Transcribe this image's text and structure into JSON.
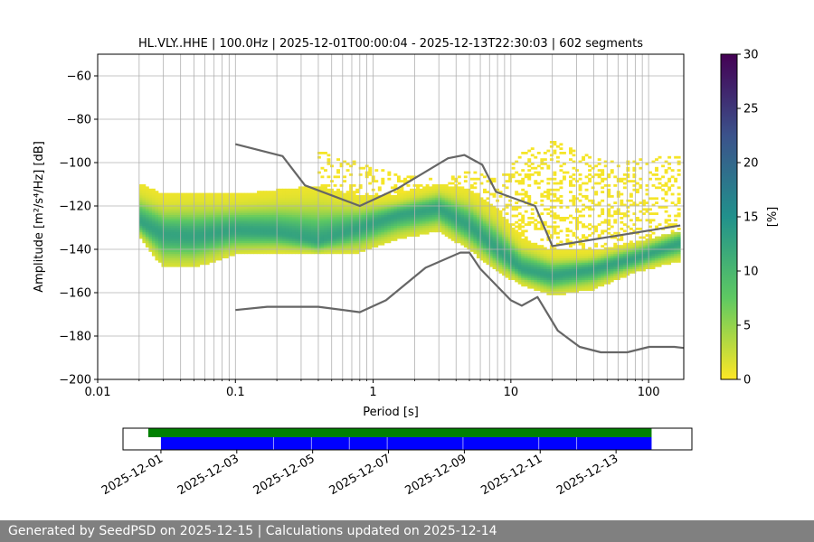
{
  "chart_data": [
    {
      "type": "heatmap",
      "title": "HL.VLY..HHE | 100.0Hz | 2025-12-01T00:00:04 - 2025-12-13T22:30:03 | 602 segments",
      "xlabel": "Period [s]",
      "ylabel": "Amplitude [m²/s⁴/Hz] [dB]",
      "x_scale": "log",
      "xlim": [
        0.01,
        180
      ],
      "ylim": [
        -200,
        -50
      ],
      "x_ticks": [
        0.01,
        0.1,
        1,
        10,
        100
      ],
      "x_tick_labels": [
        "0.01",
        "0.1",
        "1",
        "10",
        "100"
      ],
      "y_ticks": [
        -200,
        -180,
        -160,
        -140,
        -120,
        -100,
        -80,
        -60
      ],
      "y_tick_labels": [
        "−200",
        "−180",
        "−160",
        "−140",
        "−120",
        "−100",
        "−80",
        "−60"
      ],
      "grid": true,
      "colormap": "viridis",
      "colorbar": {
        "label": "[%]",
        "range": [
          0,
          30
        ],
        "ticks": [
          0,
          5,
          10,
          15,
          20,
          25,
          30
        ],
        "tick_labels": [
          "0",
          "5",
          "10",
          "15",
          "20",
          "25",
          "30"
        ]
      },
      "density_band": {
        "period": [
          0.02,
          0.03,
          0.05,
          0.1,
          0.2,
          0.4,
          0.8,
          1.5,
          3,
          5,
          8,
          12,
          20,
          40,
          80,
          170
        ],
        "mode_db": [
          -127,
          -133,
          -134,
          -131,
          -132,
          -136,
          -130,
          -124,
          -121,
          -129,
          -140,
          -149,
          -152,
          -149,
          -144,
          -137
        ],
        "low_db": [
          -134,
          -148,
          -148,
          -142,
          -141,
          -142,
          -141,
          -135,
          -131,
          -140,
          -150,
          -156,
          -161,
          -158,
          -150,
          -145
        ],
        "high_db": [
          -110,
          -115,
          -114,
          -115,
          -113,
          -111,
          -116,
          -115,
          -110,
          -113,
          -122,
          -135,
          -141,
          -141,
          -137,
          -132
        ],
        "peak_percent": 12
      },
      "sparse_upper": {
        "period": [
          0.4,
          0.8,
          1.5,
          3,
          5,
          8,
          12,
          20,
          30,
          50,
          80,
          170
        ],
        "upper_db": [
          -95,
          -100,
          -106,
          -108,
          -104,
          -108,
          -96,
          -90,
          -95,
          -100,
          -99,
          -97
        ]
      },
      "series": [
        {
          "x": [
            0.1,
            0.22,
            0.32,
            0.8,
            1.5,
            3.5,
            4.6,
            6.2,
            7.8,
            15,
            20,
            170
          ],
          "y": [
            -91.5,
            -97,
            -110.5,
            -120,
            -112,
            -98,
            -96.5,
            -101,
            -113.5,
            -120,
            -138.5,
            -129
          ]
        },
        {
          "x": [
            0.1,
            0.17,
            0.4,
            0.8,
            1.24,
            2.4,
            4.3,
            5.0,
            6.0,
            10,
            12,
            15.6,
            21.9,
            31.6,
            45,
            70,
            101,
            154,
            180
          ],
          "y": [
            -168,
            -166.5,
            -166.5,
            -169,
            -163.5,
            -148.5,
            -141.5,
            -141.5,
            -149,
            -163.5,
            -166,
            -162,
            -177.5,
            -185,
            -187.5,
            -187.5,
            -185,
            -185,
            -185.5
          ]
        }
      ]
    },
    {
      "type": "timeline",
      "xlim": [
        "2025-11-30",
        "2025-12-15"
      ],
      "x_tick_labels": [
        "2025-12-01",
        "2025-12-03",
        "2025-12-05",
        "2025-12-07",
        "2025-12-09",
        "2025-12-11",
        "2025-12-13"
      ],
      "x_tick_dates": [
        "2025-12-01",
        "2025-12-03",
        "2025-12-05",
        "2025-12-07",
        "2025-12-09",
        "2025-12-11",
        "2025-12-13"
      ],
      "data_available": {
        "start": "2025-11-30T16:00",
        "end": "2025-12-13T22:30",
        "color": "#008000"
      },
      "psd_segments": [
        {
          "start": "2025-12-01T00:00",
          "end": "2025-12-03T23:00"
        },
        {
          "start": "2025-12-03T23:20",
          "end": "2025-12-04T23:00"
        },
        {
          "start": "2025-12-04T23:20",
          "end": "2025-12-05T23:00"
        },
        {
          "start": "2025-12-05T23:20",
          "end": "2025-12-06T23:00"
        },
        {
          "start": "2025-12-06T23:20",
          "end": "2025-12-08T23:00"
        },
        {
          "start": "2025-12-08T23:20",
          "end": "2025-12-10T23:00"
        },
        {
          "start": "2025-12-10T23:20",
          "end": "2025-12-11T23:00"
        },
        {
          "start": "2025-12-11T23:20",
          "end": "2025-12-13T22:30"
        }
      ],
      "segment_color": "#0000ff"
    }
  ],
  "footer": {
    "text": "Generated by SeedPSD on 2025-12-15 | Calculations updated on 2025-12-14"
  }
}
